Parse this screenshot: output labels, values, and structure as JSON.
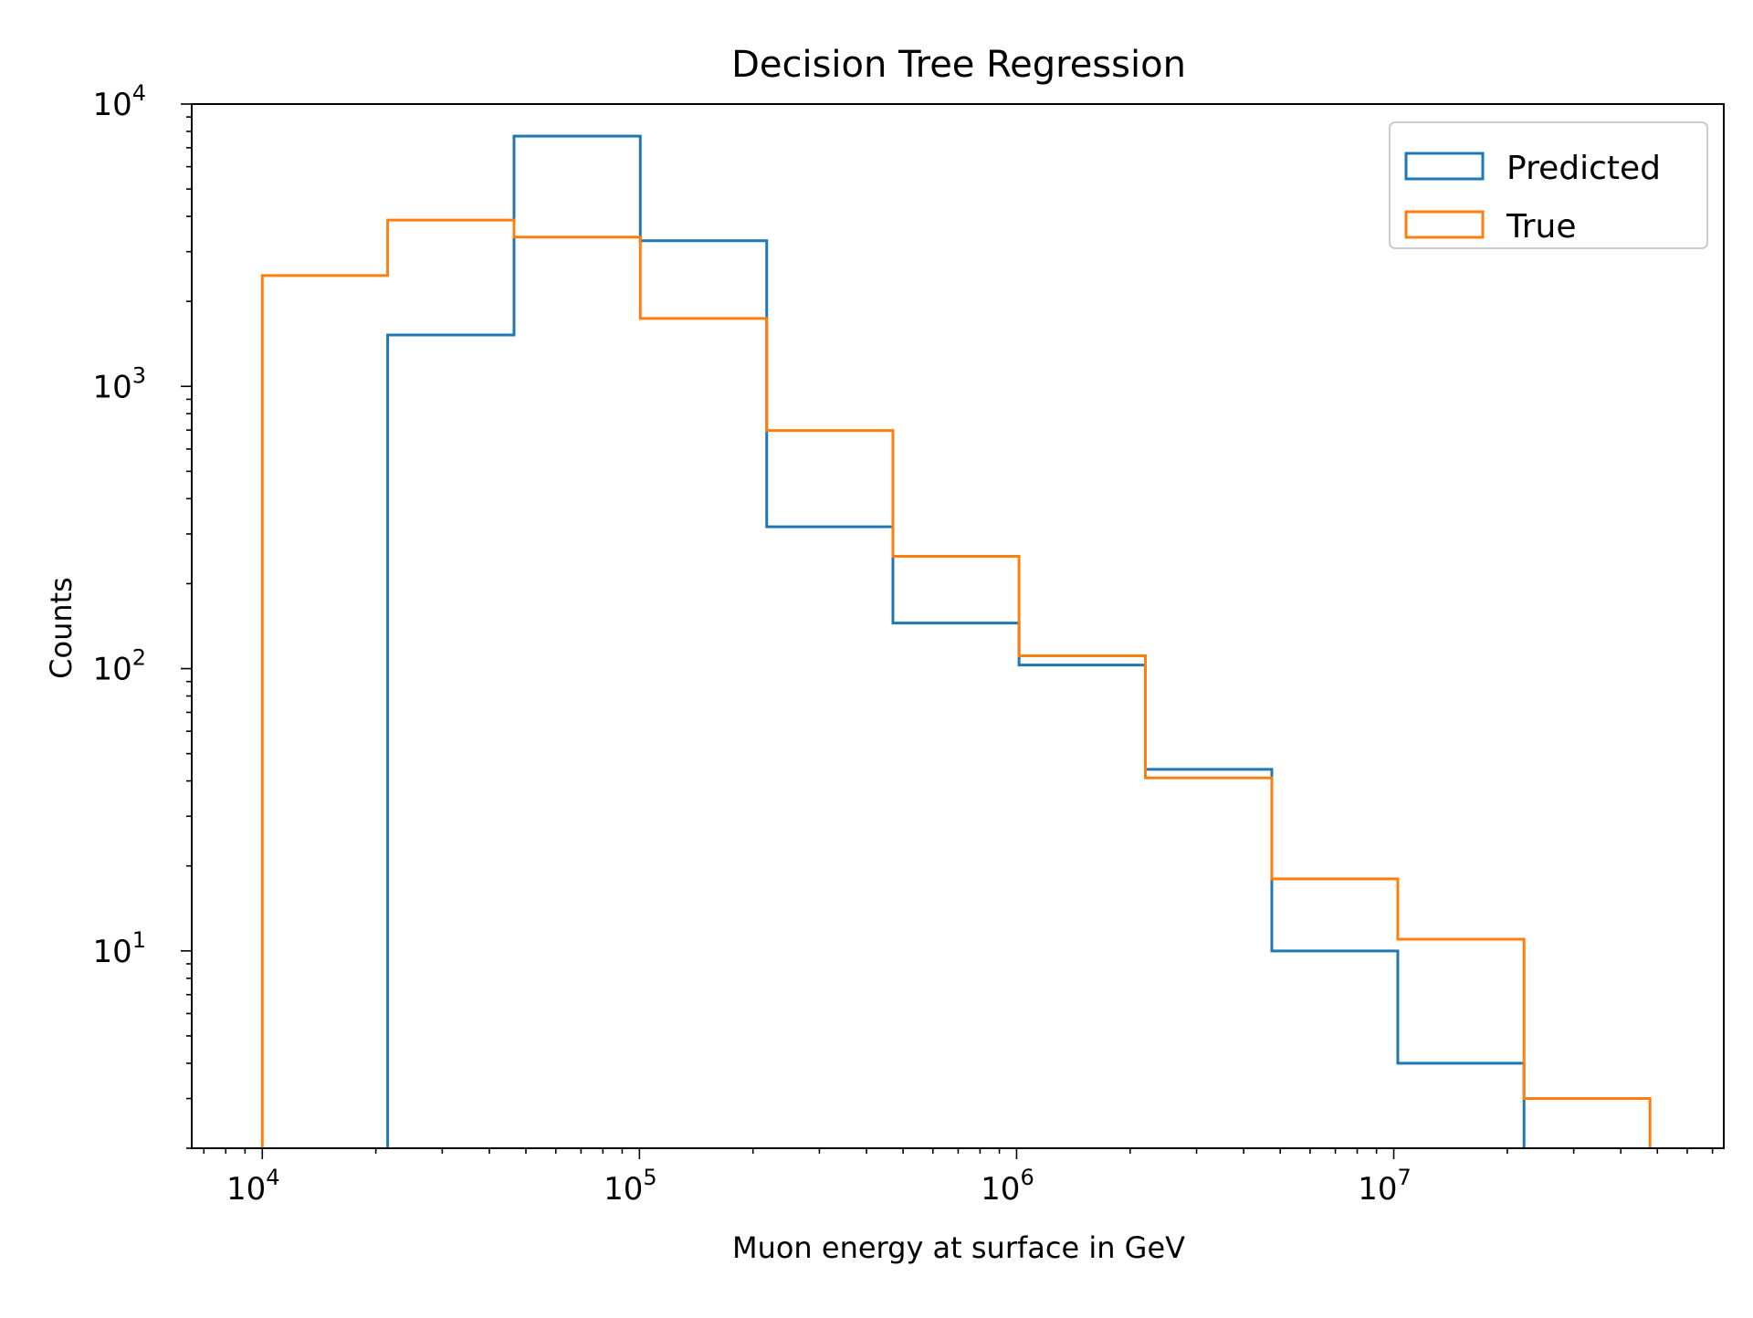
{
  "chart_data": {
    "type": "histogram-step",
    "title": "Decision Tree Regression",
    "xlabel": "Muon energy at surface in GeV",
    "ylabel": "Counts",
    "xscale": "log",
    "yscale": "log",
    "xlim": [
      6500,
      75000000
    ],
    "ylim": [
      2,
      10000
    ],
    "xticks": [
      {
        "value": 10000,
        "base": "10",
        "exp": "4"
      },
      {
        "value": 100000,
        "base": "10",
        "exp": "5"
      },
      {
        "value": 1000000,
        "base": "10",
        "exp": "6"
      },
      {
        "value": 10000000,
        "base": "10",
        "exp": "7"
      }
    ],
    "yticks": [
      {
        "value": 10,
        "base": "10",
        "exp": "1"
      },
      {
        "value": 100,
        "base": "10",
        "exp": "2"
      },
      {
        "value": 1000,
        "base": "10",
        "exp": "3"
      },
      {
        "value": 10000,
        "base": "10",
        "exp": "4"
      }
    ],
    "legend_position": "top-right",
    "series": [
      {
        "name": "Predicted",
        "color": "#1f77b4",
        "bin_edges": [
          21500,
          46500,
          100500,
          217500,
          470000,
          1015000,
          2195000,
          4750000,
          10250000,
          22150000
        ],
        "counts": [
          1520,
          7700,
          3280,
          318,
          145,
          103,
          44,
          10,
          4
        ]
      },
      {
        "name": "True",
        "color": "#ff7f0e",
        "bin_edges": [
          10000,
          21500,
          46500,
          100500,
          217500,
          470000,
          1015000,
          2195000,
          4750000,
          10250000,
          22150000,
          47800000
        ],
        "counts": [
          2470,
          3880,
          3380,
          1740,
          698,
          250,
          111,
          41,
          18,
          11,
          3
        ]
      }
    ]
  }
}
